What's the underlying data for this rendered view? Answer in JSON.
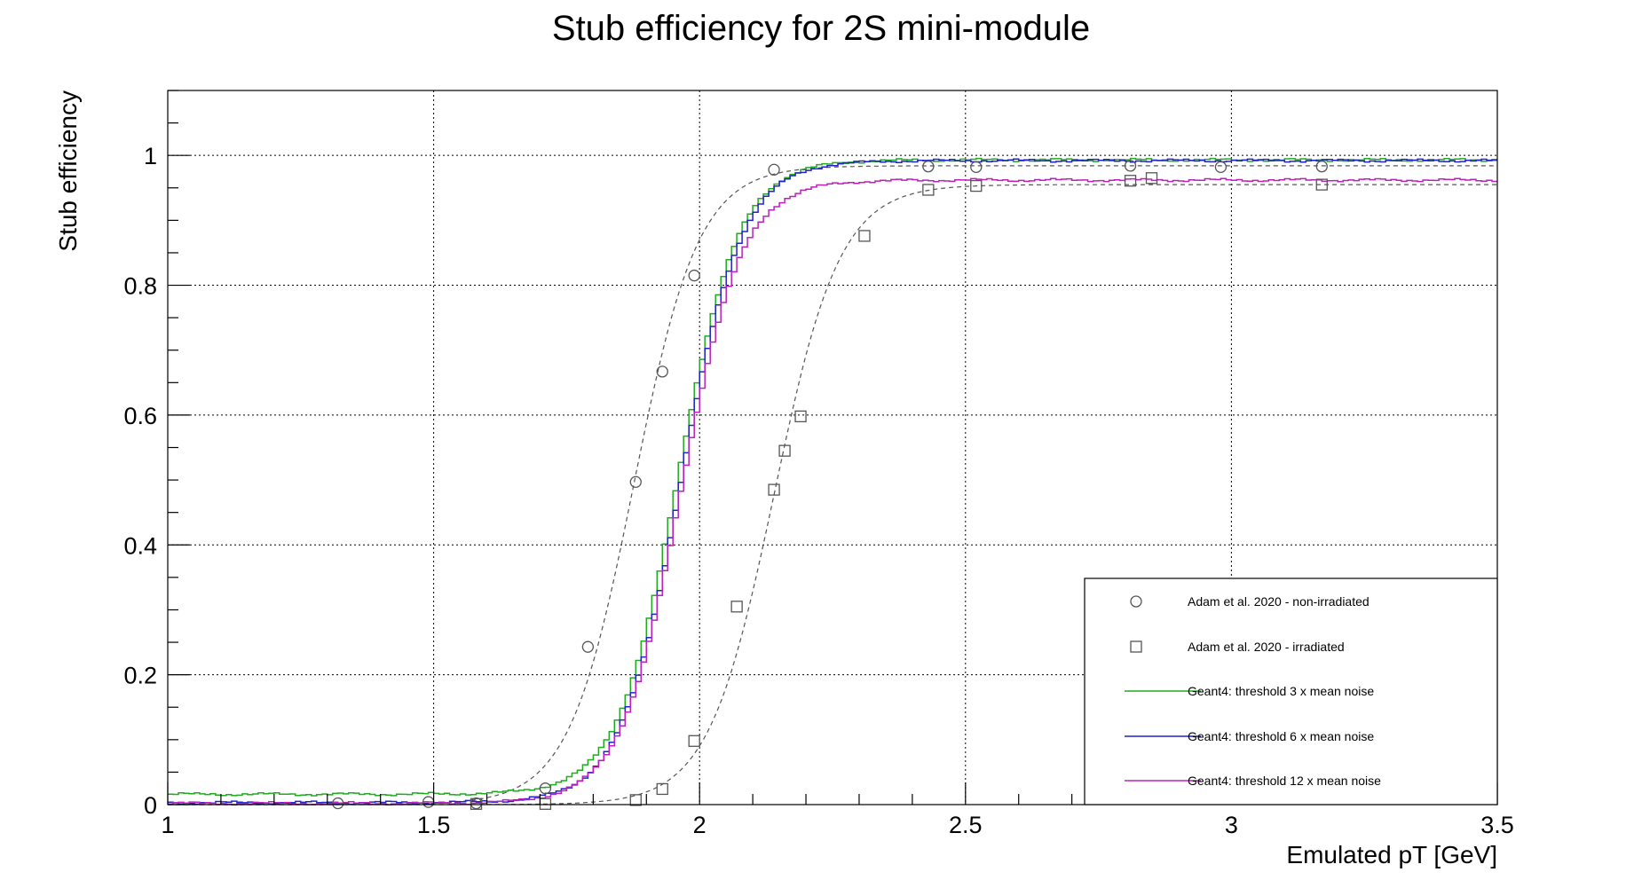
{
  "chart_data": {
    "type": "line",
    "title": "Stub efficiency for 2S mini-module",
    "xlabel": "Emulated pT [GeV]",
    "ylabel": "Stub efficiency",
    "xlim": [
      1,
      3.5
    ],
    "ylim": [
      0,
      1.1
    ],
    "x_ticks": [
      1,
      1.5,
      2,
      2.5,
      3,
      3.5
    ],
    "x_tick_labels": [
      "1",
      "1.5",
      "2",
      "2.5",
      "3",
      "3.5"
    ],
    "y_ticks": [
      0,
      0.2,
      0.4,
      0.6,
      0.8,
      1
    ],
    "y_tick_labels": [
      "0",
      "0.2",
      "0.4",
      "0.6",
      "0.8",
      "1"
    ],
    "grid": true,
    "legend_position": "bottom-right",
    "series": [
      {
        "name": "Adam et al. 2020 - non-irradiated",
        "kind": "markers",
        "marker": "open-circle",
        "color": "#555555",
        "x": [
          1.32,
          1.49,
          1.58,
          1.71,
          1.79,
          1.88,
          1.93,
          1.99,
          2.14,
          2.43,
          2.52,
          2.81,
          2.98,
          3.17
        ],
        "y": [
          0.002,
          0.004,
          0.002,
          0.025,
          0.243,
          0.497,
          0.667,
          0.815,
          0.978,
          0.983,
          0.982,
          0.984,
          0.982,
          0.983
        ]
      },
      {
        "name": "Adam et al. 2020 - irradiated",
        "kind": "markers",
        "marker": "open-square",
        "color": "#555555",
        "x": [
          1.58,
          1.71,
          1.88,
          1.93,
          1.99,
          2.07,
          2.14,
          2.16,
          2.19,
          2.31,
          2.43,
          2.52,
          2.81,
          2.85,
          3.17
        ],
        "y": [
          0.001,
          0.001,
          0.007,
          0.024,
          0.098,
          0.305,
          0.485,
          0.545,
          0.598,
          0.876,
          0.947,
          0.953,
          0.961,
          0.965,
          0.955
        ]
      },
      {
        "name": "Geant4: threshold 3 x mean noise",
        "kind": "step",
        "color": "#22aa22",
        "baseline": 0.016,
        "plateau": 0.993,
        "x50": 1.96,
        "width": 0.057
      },
      {
        "name": "Geant4: threshold 6 x mean noise",
        "kind": "step",
        "color": "#2222cc",
        "baseline": 0.003,
        "plateau": 0.992,
        "x50": 1.965,
        "width": 0.057
      },
      {
        "name": "Geant4: threshold 12 x mean noise",
        "kind": "step",
        "color": "#bb22bb",
        "baseline": 0.002,
        "plateau": 0.962,
        "x50": 1.965,
        "width": 0.057
      }
    ],
    "fits": [
      {
        "color": "#555555",
        "plateau": 0.984,
        "x50": 1.876,
        "width": 0.061
      },
      {
        "color": "#555555",
        "plateau": 0.955,
        "x50": 2.14,
        "width": 0.062
      }
    ]
  }
}
